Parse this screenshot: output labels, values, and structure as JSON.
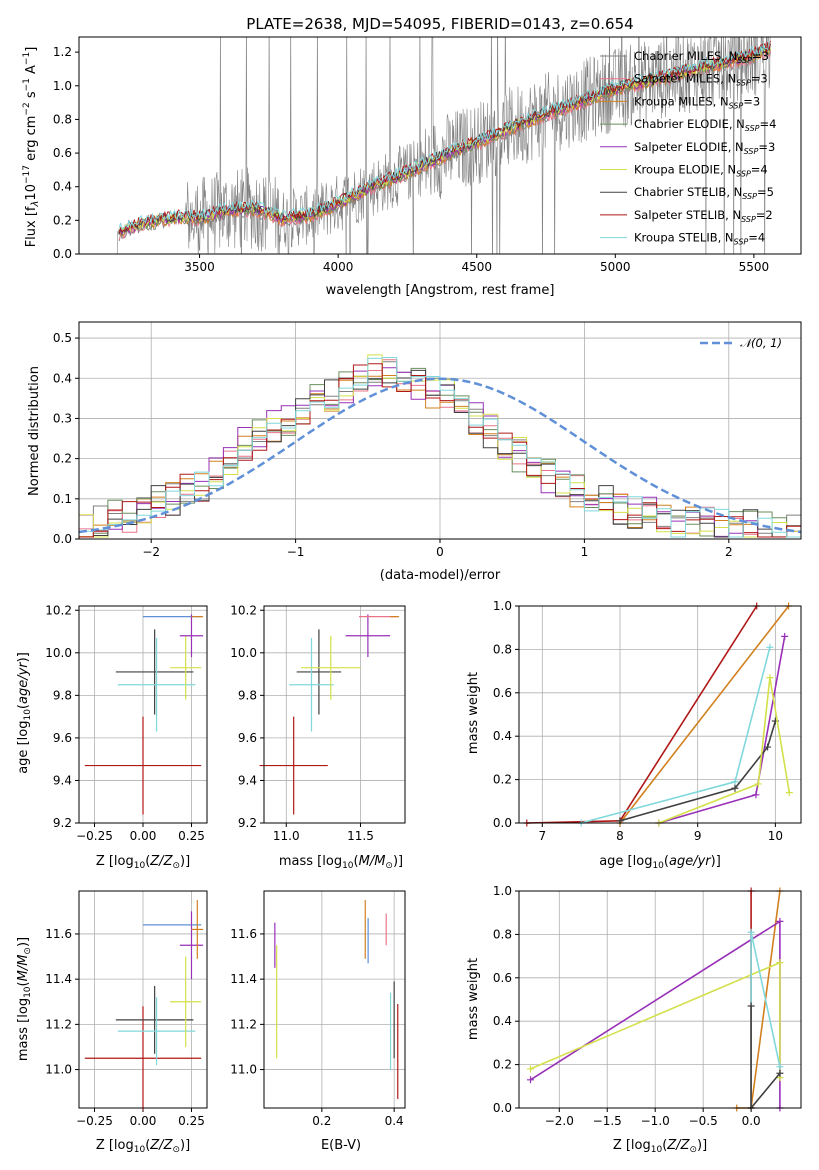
{
  "chart_data": [
    {
      "id": "spectrum",
      "type": "line",
      "title": "PLATE=2638, MJD=54095, FIBERID=0143, z=0.654",
      "xlabel": "wavelength [Angstrom, rest frame]",
      "ylabel": "Flux [f$_\\lambda$10$^{-17}$ erg cm$^{-2}$ s$^{-1}$ A$^{-1}$]",
      "ylabel_parts": {
        "a": "Flux [f",
        "b": "λ",
        "c": "10",
        "d": "−17",
        "e": " erg cm",
        "f": "−2",
        "g": " s",
        "h": "−1",
        "i": " A",
        "j": "−1",
        "k": "]"
      },
      "xlim": [
        3065,
        5670
      ],
      "ylim": [
        0,
        1.29
      ],
      "xticks": [
        3500,
        4000,
        4500,
        5000,
        5500
      ],
      "yticks": [
        0.0,
        0.2,
        0.4,
        0.6,
        0.8,
        1.0,
        1.2
      ],
      "legend_location": "upper right",
      "series": [
        {
          "name": "Chabrier MILES, N$_{SSP}$=3",
          "label": "Chabrier MILES, N",
          "sub": "SSP",
          "tail": "=3",
          "color": "#808080"
        },
        {
          "name": "Salpeter MILES, N$_{SSP}$=3",
          "label": "Salpeter MILES, N",
          "sub": "SSP",
          "tail": "=3",
          "color": "#e9748a"
        },
        {
          "name": "Kroupa MILES, N$_{SSP}$=3",
          "label": "Kroupa MILES, N",
          "sub": "SSP",
          "tail": "=3",
          "color": "#d2801f"
        },
        {
          "name": "Chabrier ELODIE, N$_{SSP}$=4",
          "label": "Chabrier ELODIE, N",
          "sub": "SSP",
          "tail": "=4",
          "color": "#6b8e5e"
        },
        {
          "name": "Salpeter ELODIE, N$_{SSP}$=3",
          "label": "Salpeter ELODIE, N",
          "sub": "SSP",
          "tail": "=3",
          "color": "#9830b8"
        },
        {
          "name": "Kroupa ELODIE, N$_{SSP}$=4",
          "label": "Kroupa ELODIE, N",
          "sub": "SSP",
          "tail": "=4",
          "color": "#d4e04a"
        },
        {
          "name": "Chabrier STELIB, N$_{SSP}$=5",
          "label": "Chabrier STELIB, N",
          "sub": "SSP",
          "tail": "=5",
          "color": "#404040"
        },
        {
          "name": "Salpeter STELIB, N$_{SSP}$=2",
          "label": "Salpeter STELIB, N",
          "sub": "SSP",
          "tail": "=2",
          "color": "#b01818"
        },
        {
          "name": "Kroupa STELIB, N$_{SSP}$=4",
          "label": "Kroupa STELIB, N",
          "sub": "SSP",
          "tail": "=4",
          "color": "#80d8dc"
        }
      ],
      "model_continuum": {
        "x": [
          3210,
          3250,
          3350,
          3450,
          3500,
          3600,
          3700,
          3800,
          3900,
          4000,
          4100,
          4200,
          4300,
          4400,
          4500,
          4600,
          4700,
          4800,
          4900,
          5000,
          5100,
          5200,
          5300,
          5400,
          5500,
          5560
        ],
        "y": [
          0.13,
          0.16,
          0.2,
          0.22,
          0.21,
          0.26,
          0.27,
          0.21,
          0.23,
          0.3,
          0.38,
          0.45,
          0.52,
          0.6,
          0.66,
          0.73,
          0.8,
          0.86,
          0.92,
          0.98,
          1.02,
          1.06,
          1.1,
          1.14,
          1.18,
          1.22
        ]
      },
      "observed_range": [
        3195,
        5560
      ]
    },
    {
      "id": "residuals",
      "type": "histogram",
      "xlabel": "(data-model)/error",
      "ylabel": "Normed distribution",
      "xlim": [
        -2.5,
        2.5
      ],
      "ylim": [
        0,
        0.54
      ],
      "xticks": [
        -2,
        -1,
        0,
        1,
        2
      ],
      "yticks": [
        0.0,
        0.1,
        0.2,
        0.3,
        0.4,
        0.5
      ],
      "bin_width": 0.1,
      "reference_curve": {
        "name": "$\\mathcal{N}(0,1)$",
        "label": "𝒩(0, 1)",
        "color": "#6090d8",
        "style": "dashed",
        "mean": 0,
        "sigma": 1
      },
      "histogram_profile": [
        0.03,
        0.04,
        0.06,
        0.06,
        0.08,
        0.09,
        0.1,
        0.12,
        0.13,
        0.17,
        0.2,
        0.24,
        0.26,
        0.28,
        0.3,
        0.32,
        0.35,
        0.36,
        0.38,
        0.4,
        0.42,
        0.41,
        0.4,
        0.39,
        0.37,
        0.36,
        0.33,
        0.3,
        0.27,
        0.24,
        0.21,
        0.19,
        0.16,
        0.14,
        0.12,
        0.11,
        0.1,
        0.08,
        0.07,
        0.06,
        0.05,
        0.045,
        0.04,
        0.035,
        0.03,
        0.03,
        0.028,
        0.025,
        0.022,
        0.02
      ],
      "legend_location": "upper right"
    },
    {
      "id": "age_vs_Z",
      "type": "errorbar",
      "xlabel": "Z [log$_{10}$($Z/Z_\\odot$)]",
      "ylabel": "age  [log$_{10}$($age/yr$)]",
      "xlim": [
        -0.33,
        0.33
      ],
      "ylim": [
        9.2,
        10.22
      ],
      "xticks": [
        -0.25,
        0.0,
        0.25
      ],
      "yticks": [
        9.2,
        9.4,
        9.6,
        9.8,
        10.0,
        10.2
      ],
      "points": [
        {
          "x": 0.0,
          "y": 9.47,
          "xerr": 0.3,
          "yerr": 0.23,
          "color": "#b01818"
        },
        {
          "x": 0.06,
          "y": 9.91,
          "xerr": 0.2,
          "yerr": 0.2,
          "color": "#404040"
        },
        {
          "x": 0.07,
          "y": 9.85,
          "xerr": 0.2,
          "yerr": 0.22,
          "color": "#80d8dc"
        },
        {
          "x": 0.15,
          "y": 10.17,
          "xerr": 0.15,
          "yerr": 0.0,
          "color": "#6090d8"
        },
        {
          "x": 0.22,
          "y": 9.93,
          "xerr": 0.08,
          "yerr": 0.15,
          "color": "#d4e04a"
        },
        {
          "x": 0.25,
          "y": 10.08,
          "xerr": 0.06,
          "yerr": 0.1,
          "color": "#9830b8"
        },
        {
          "x": 0.28,
          "y": 10.17,
          "xerr": 0.03,
          "yerr": 0.0,
          "color": "#d2801f"
        }
      ]
    },
    {
      "id": "age_vs_mass",
      "type": "errorbar",
      "xlabel": "mass [log$_{10}$($M/M_\\odot$)]",
      "ylabel": "",
      "xlim": [
        10.85,
        11.8
      ],
      "ylim": [
        9.2,
        10.22
      ],
      "xticks": [
        11.0,
        11.5
      ],
      "yticks": [
        9.2,
        9.4,
        9.6,
        9.8,
        10.0,
        10.2
      ],
      "points": [
        {
          "x": 11.05,
          "y": 9.47,
          "xerr": 0.23,
          "yerr": 0.23,
          "color": "#b01818"
        },
        {
          "x": 11.22,
          "y": 9.91,
          "xerr": 0.15,
          "yerr": 0.2,
          "color": "#404040"
        },
        {
          "x": 11.17,
          "y": 9.85,
          "xerr": 0.15,
          "yerr": 0.22,
          "color": "#80d8dc"
        },
        {
          "x": 11.3,
          "y": 9.93,
          "xerr": 0.2,
          "yerr": 0.15,
          "color": "#d4e04a"
        },
        {
          "x": 11.55,
          "y": 10.08,
          "xerr": 0.15,
          "yerr": 0.1,
          "color": "#9830b8"
        },
        {
          "x": 11.62,
          "y": 10.17,
          "xerr": 0.13,
          "yerr": 0.0,
          "color": "#e9748a"
        },
        {
          "x": 11.73,
          "y": 10.17,
          "xerr": 0.03,
          "yerr": 0.0,
          "color": "#d2801f"
        }
      ]
    },
    {
      "id": "weight_vs_age",
      "type": "line",
      "xlabel": "age  [log$_{10}$($age/yr$)]",
      "ylabel": "mass weight",
      "xlim": [
        6.7,
        10.33
      ],
      "ylim": [
        0,
        1.0
      ],
      "xticks": [
        7,
        8,
        9,
        10
      ],
      "yticks": [
        0.0,
        0.2,
        0.4,
        0.6,
        0.8,
        1.0
      ],
      "series": [
        {
          "color": "#b01818",
          "x": [
            6.8,
            8.0,
            9.76
          ],
          "y": [
            0.0,
            0.01,
            1.0
          ]
        },
        {
          "color": "#d2801f",
          "x": [
            8.0,
            10.17
          ],
          "y": [
            0.0,
            1.0
          ]
        },
        {
          "color": "#9830b8",
          "x": [
            8.5,
            9.75,
            10.12
          ],
          "y": [
            0.0,
            0.13,
            0.86
          ]
        },
        {
          "color": "#80d8dc",
          "x": [
            7.5,
            9.48,
            9.93
          ],
          "y": [
            0.0,
            0.19,
            0.81
          ]
        },
        {
          "color": "#404040",
          "x": [
            8.0,
            9.48,
            9.9,
            10.0
          ],
          "y": [
            0.01,
            0.16,
            0.35,
            0.47
          ]
        },
        {
          "color": "#d4e04a",
          "x": [
            8.5,
            9.78,
            9.93,
            10.18
          ],
          "y": [
            0.0,
            0.18,
            0.67,
            0.14
          ]
        }
      ]
    },
    {
      "id": "mass_vs_Z",
      "type": "errorbar",
      "xlabel": "Z [log$_{10}$($Z/Z_\\odot$)]",
      "ylabel": "mass [log$_{10}$($M/M_\\odot$)]",
      "xlim": [
        -0.33,
        0.33
      ],
      "ylim": [
        10.83,
        11.79
      ],
      "xticks": [
        -0.25,
        0.0,
        0.25
      ],
      "yticks": [
        11.0,
        11.2,
        11.4,
        11.6
      ],
      "points": [
        {
          "x": 0.0,
          "y": 11.05,
          "xerr": 0.3,
          "yerr": 0.23,
          "color": "#b01818"
        },
        {
          "x": 0.06,
          "y": 11.22,
          "xerr": 0.2,
          "yerr": 0.15,
          "color": "#404040"
        },
        {
          "x": 0.07,
          "y": 11.17,
          "xerr": 0.2,
          "yerr": 0.15,
          "color": "#80d8dc"
        },
        {
          "x": 0.15,
          "y": 11.64,
          "xerr": 0.15,
          "yerr": 0.0,
          "color": "#6090d8"
        },
        {
          "x": 0.22,
          "y": 11.3,
          "xerr": 0.08,
          "yerr": 0.2,
          "color": "#d4e04a"
        },
        {
          "x": 0.25,
          "y": 11.55,
          "xerr": 0.06,
          "yerr": 0.15,
          "color": "#9830b8"
        },
        {
          "x": 0.28,
          "y": 11.62,
          "xerr": 0.03,
          "yerr": 0.13,
          "color": "#d2801f"
        }
      ]
    },
    {
      "id": "mass_vs_EBV",
      "type": "errorbar",
      "xlabel": "E(B-V)",
      "ylabel": "",
      "xlim": [
        0.04,
        0.43
      ],
      "ylim": [
        10.83,
        11.79
      ],
      "xticks": [
        0.2,
        0.4
      ],
      "yticks": [
        11.0,
        11.2,
        11.4,
        11.6
      ],
      "points": [
        {
          "x": 0.07,
          "y": 11.55,
          "xerr": 0.0,
          "yerr": 0.1,
          "color": "#9830b8"
        },
        {
          "x": 0.075,
          "y": 11.3,
          "xerr": 0.0,
          "yerr": 0.25,
          "color": "#d4e04a"
        },
        {
          "x": 0.32,
          "y": 11.62,
          "xerr": 0.0,
          "yerr": 0.13,
          "color": "#d2801f"
        },
        {
          "x": 0.328,
          "y": 11.57,
          "xerr": 0.0,
          "yerr": 0.1,
          "color": "#6090d8"
        },
        {
          "x": 0.378,
          "y": 11.62,
          "xerr": 0.0,
          "yerr": 0.07,
          "color": "#e9748a"
        },
        {
          "x": 0.39,
          "y": 11.17,
          "xerr": 0.0,
          "yerr": 0.17,
          "color": "#80d8dc"
        },
        {
          "x": 0.4,
          "y": 11.22,
          "xerr": 0.0,
          "yerr": 0.17,
          "color": "#404040"
        },
        {
          "x": 0.41,
          "y": 11.08,
          "xerr": 0.0,
          "yerr": 0.21,
          "color": "#b01818"
        }
      ]
    },
    {
      "id": "weight_vs_Z",
      "type": "line",
      "xlabel": "Z [log$_{10}$($Z/Z_\\odot$)]",
      "ylabel": "mass weight",
      "xlim": [
        -2.42,
        0.52
      ],
      "ylim": [
        0,
        1.0
      ],
      "xticks": [
        -2.0,
        -1.5,
        -1.0,
        -0.5,
        0.0
      ],
      "yticks": [
        0.0,
        0.2,
        0.4,
        0.6,
        0.8,
        1.0
      ],
      "series": [
        {
          "color": "#b01818",
          "x": [
            0.0,
            0.0
          ],
          "y": [
            0.0,
            1.0
          ]
        },
        {
          "color": "#d2801f",
          "x": [
            -0.15,
            0.0,
            0.3
          ],
          "y": [
            0.0,
            0.0,
            1.0
          ]
        },
        {
          "color": "#9830b8",
          "x": [
            -2.3,
            0.3,
            0.3
          ],
          "y": [
            0.13,
            0.86,
            0.0
          ]
        },
        {
          "color": "#d4e04a",
          "x": [
            -2.3,
            0.3,
            0.3
          ],
          "y": [
            0.18,
            0.67,
            0.14
          ]
        },
        {
          "color": "#80d8dc",
          "x": [
            0.0,
            0.0,
            0.3
          ],
          "y": [
            0.0,
            0.81,
            0.19
          ]
        },
        {
          "color": "#404040",
          "x": [
            0.0,
            0.0,
            0.3
          ],
          "y": [
            0.47,
            0.0,
            0.16
          ]
        }
      ]
    }
  ]
}
